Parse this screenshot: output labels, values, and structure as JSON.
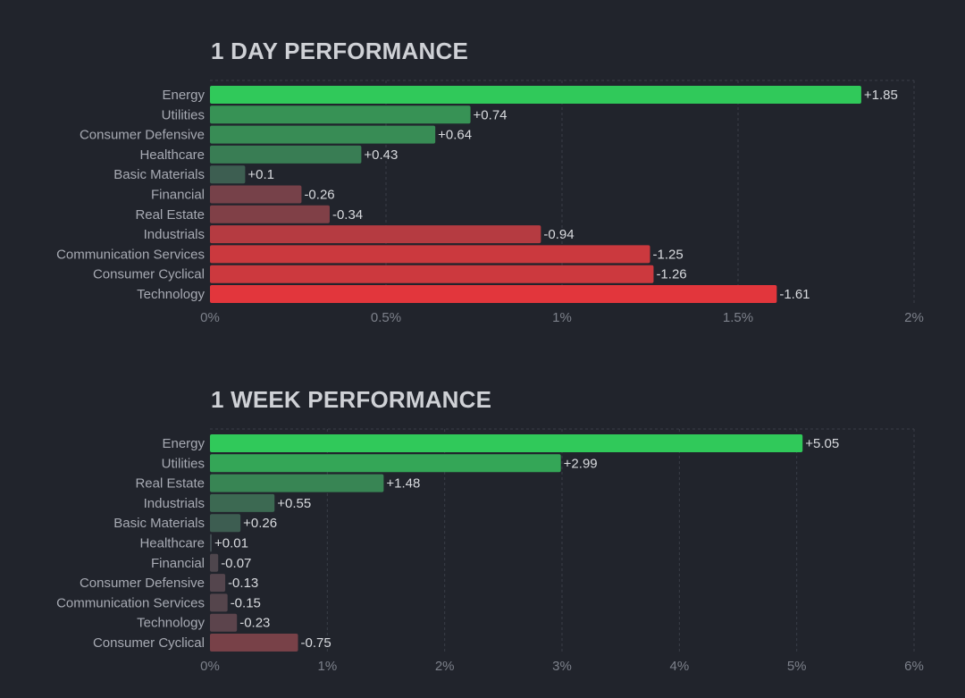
{
  "chart_data": [
    {
      "type": "bar",
      "orientation": "horizontal",
      "title": "1 DAY PERFORMANCE",
      "xlabel": "",
      "ylabel": "",
      "categories": [
        "Energy",
        "Utilities",
        "Consumer Defensive",
        "Healthcare",
        "Basic Materials",
        "Financial",
        "Real Estate",
        "Industrials",
        "Communication Services",
        "Consumer Cyclical",
        "Technology"
      ],
      "values": [
        1.85,
        0.74,
        0.64,
        0.43,
        0.1,
        -0.26,
        -0.34,
        -0.94,
        -1.25,
        -1.26,
        -1.61
      ],
      "value_labels": [
        "+1.85",
        "+0.74",
        "+0.64",
        "+0.43",
        "+0.1",
        "-0.26",
        "-0.34",
        "-0.94",
        "-1.25",
        "-1.26",
        "-1.61"
      ],
      "xlim": [
        0,
        2
      ],
      "xticks": [
        0,
        0.5,
        1,
        1.5,
        2
      ],
      "xtick_labels": [
        "0%",
        "0.5%",
        "1%",
        "1.5%",
        "2%"
      ],
      "bar_length": "absolute value",
      "grid": true,
      "colors": {
        "positive": "#30c95a",
        "negative": "#f0353a",
        "neutral": "#40474f"
      }
    },
    {
      "type": "bar",
      "orientation": "horizontal",
      "title": "1 WEEK PERFORMANCE",
      "xlabel": "",
      "ylabel": "",
      "categories": [
        "Energy",
        "Utilities",
        "Real Estate",
        "Industrials",
        "Basic Materials",
        "Healthcare",
        "Financial",
        "Consumer Defensive",
        "Communication Services",
        "Technology",
        "Consumer Cyclical"
      ],
      "values": [
        5.05,
        2.99,
        1.48,
        0.55,
        0.26,
        0.01,
        -0.07,
        -0.13,
        -0.15,
        -0.23,
        -0.75
      ],
      "value_labels": [
        "+5.05",
        "+2.99",
        "+1.48",
        "+0.55",
        "+0.26",
        "+0.01",
        "-0.07",
        "-0.13",
        "-0.15",
        "-0.23",
        "-0.75"
      ],
      "xlim": [
        0,
        6
      ],
      "xticks": [
        0,
        1,
        2,
        3,
        4,
        5,
        6
      ],
      "xtick_labels": [
        "0%",
        "1%",
        "2%",
        "3%",
        "4%",
        "5%",
        "6%"
      ],
      "bar_length": "absolute value",
      "grid": true,
      "colors": {
        "positive": "#30c95a",
        "negative": "#f0353a",
        "neutral": "#40474f"
      }
    }
  ]
}
